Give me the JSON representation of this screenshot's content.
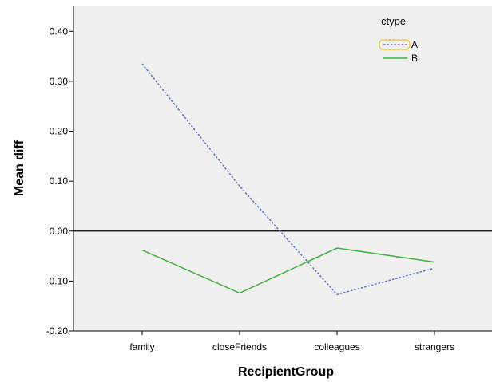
{
  "chart_data": {
    "type": "line",
    "xlabel": "RecipientGroup",
    "ylabel": "Mean diff",
    "categories": [
      "family",
      "closeFriends",
      "colleagues",
      "strangers"
    ],
    "ylim": [
      -0.2,
      0.45
    ],
    "yticks": [
      -0.2,
      -0.1,
      0.0,
      0.1,
      0.2,
      0.3,
      0.4
    ],
    "ytick_labels": [
      "-0.20",
      "-0.10",
      "0.00",
      "0.10",
      "0.20",
      "0.30",
      "0.40"
    ],
    "reference_line": 0.0,
    "grid": false,
    "legend": {
      "title": "ctype",
      "position": "top-right",
      "selected_entry": "A"
    },
    "series": [
      {
        "name": "A",
        "values": [
          0.335,
          0.09,
          -0.127,
          -0.074
        ],
        "color": "#5a6fd0",
        "line_style": "dotted"
      },
      {
        "name": "B",
        "values": [
          -0.038,
          -0.124,
          -0.034,
          -0.062
        ],
        "color": "#3cb43c",
        "line_style": "solid"
      }
    ]
  },
  "colors": {
    "plot_background": "#f0f0f0",
    "axis": "#000000",
    "legend_highlight": "#f5c842"
  }
}
